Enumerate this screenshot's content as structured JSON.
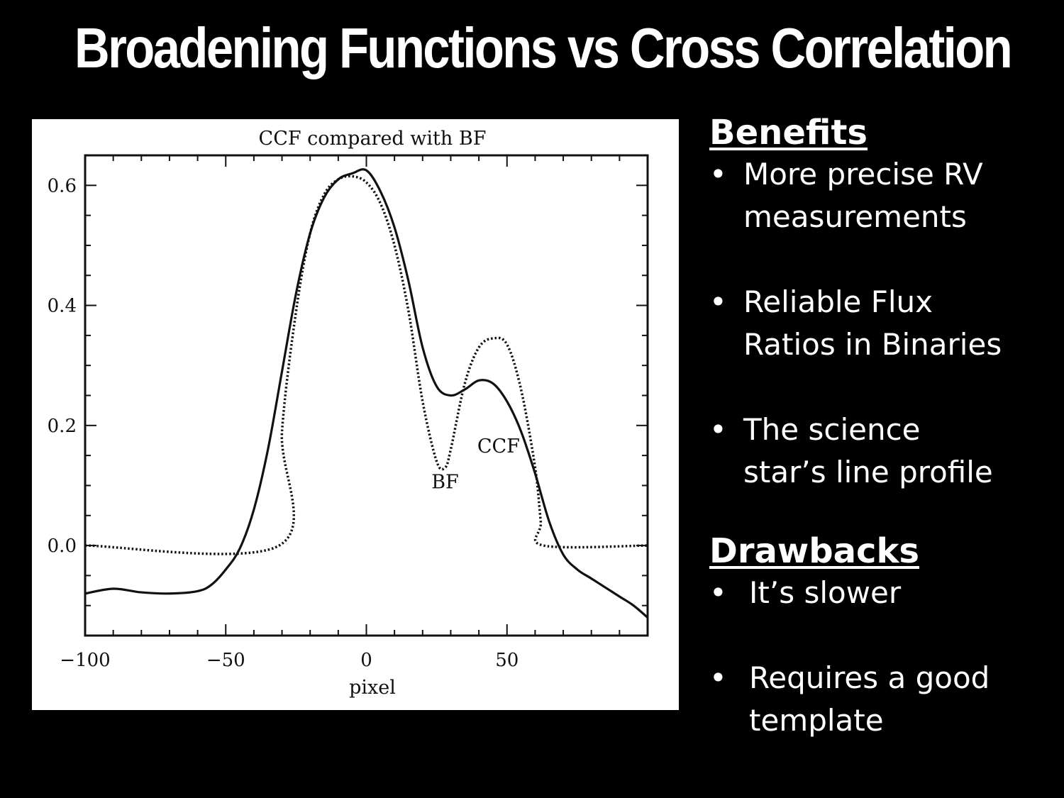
{
  "slide": {
    "title": "Broadening Functions vs Cross Correlation"
  },
  "benefits": {
    "heading": "Benefits",
    "items": [
      [
        "More  precise RV",
        "measurements"
      ],
      [
        "Reliable Flux",
        "Ratios in Binaries"
      ],
      [
        "The science",
        "star’s line profile"
      ]
    ]
  },
  "drawbacks": {
    "heading": "Drawbacks",
    "items": [
      [
        "It’s slower"
      ],
      [
        "Requires a good",
        "template"
      ]
    ]
  },
  "bullet_symbol": "•",
  "chart_data": {
    "type": "line",
    "title": "CCF compared with BF",
    "xlabel": "pixel",
    "ylabel": "",
    "xlim": [
      -100,
      100
    ],
    "ylim": [
      -0.15,
      0.65
    ],
    "xticks": [
      -100,
      -50,
      0,
      50
    ],
    "xtick_labels": [
      "−100",
      "−50",
      "0",
      "50"
    ],
    "yticks": [
      0.0,
      0.2,
      0.4,
      0.6
    ],
    "ytick_labels": [
      "0.0",
      "0.2",
      "0.4",
      "0.6"
    ],
    "grid": false,
    "series": [
      {
        "name": "CCF",
        "style": "solid",
        "x": [
          -100,
          -90,
          -80,
          -70,
          -60,
          -55,
          -50,
          -45,
          -40,
          -35,
          -30,
          -25,
          -20,
          -15,
          -10,
          -5,
          0,
          5,
          10,
          15,
          20,
          25,
          30,
          35,
          40,
          45,
          50,
          55,
          60,
          65,
          70,
          75,
          80,
          85,
          90,
          95,
          100
        ],
        "y": [
          -0.08,
          -0.072,
          -0.078,
          -0.08,
          -0.076,
          -0.065,
          -0.04,
          -0.005,
          0.06,
          0.16,
          0.29,
          0.42,
          0.52,
          0.58,
          0.61,
          0.62,
          0.625,
          0.59,
          0.53,
          0.44,
          0.33,
          0.265,
          0.25,
          0.26,
          0.275,
          0.27,
          0.24,
          0.19,
          0.12,
          0.04,
          -0.015,
          -0.04,
          -0.055,
          -0.07,
          -0.085,
          -0.1,
          -0.12
        ]
      },
      {
        "name": "BF",
        "style": "dotted",
        "x": [
          -100,
          -31,
          -30,
          -25,
          -20,
          -15,
          -10,
          -5,
          0,
          5,
          10,
          15,
          20,
          25,
          28,
          30,
          35,
          40,
          45,
          50,
          55,
          60,
          62,
          63,
          100
        ],
        "y": [
          0.0,
          0.0,
          0.19,
          0.39,
          0.52,
          0.585,
          0.61,
          0.615,
          0.605,
          0.57,
          0.5,
          0.39,
          0.24,
          0.14,
          0.13,
          0.16,
          0.27,
          0.33,
          0.345,
          0.335,
          0.26,
          0.13,
          0.04,
          0.0,
          0.0
        ]
      }
    ],
    "annotations": [
      {
        "text": "CCF",
        "x": 47,
        "y": 0.155
      },
      {
        "text": "BF",
        "x": 28,
        "y": 0.095
      }
    ]
  }
}
